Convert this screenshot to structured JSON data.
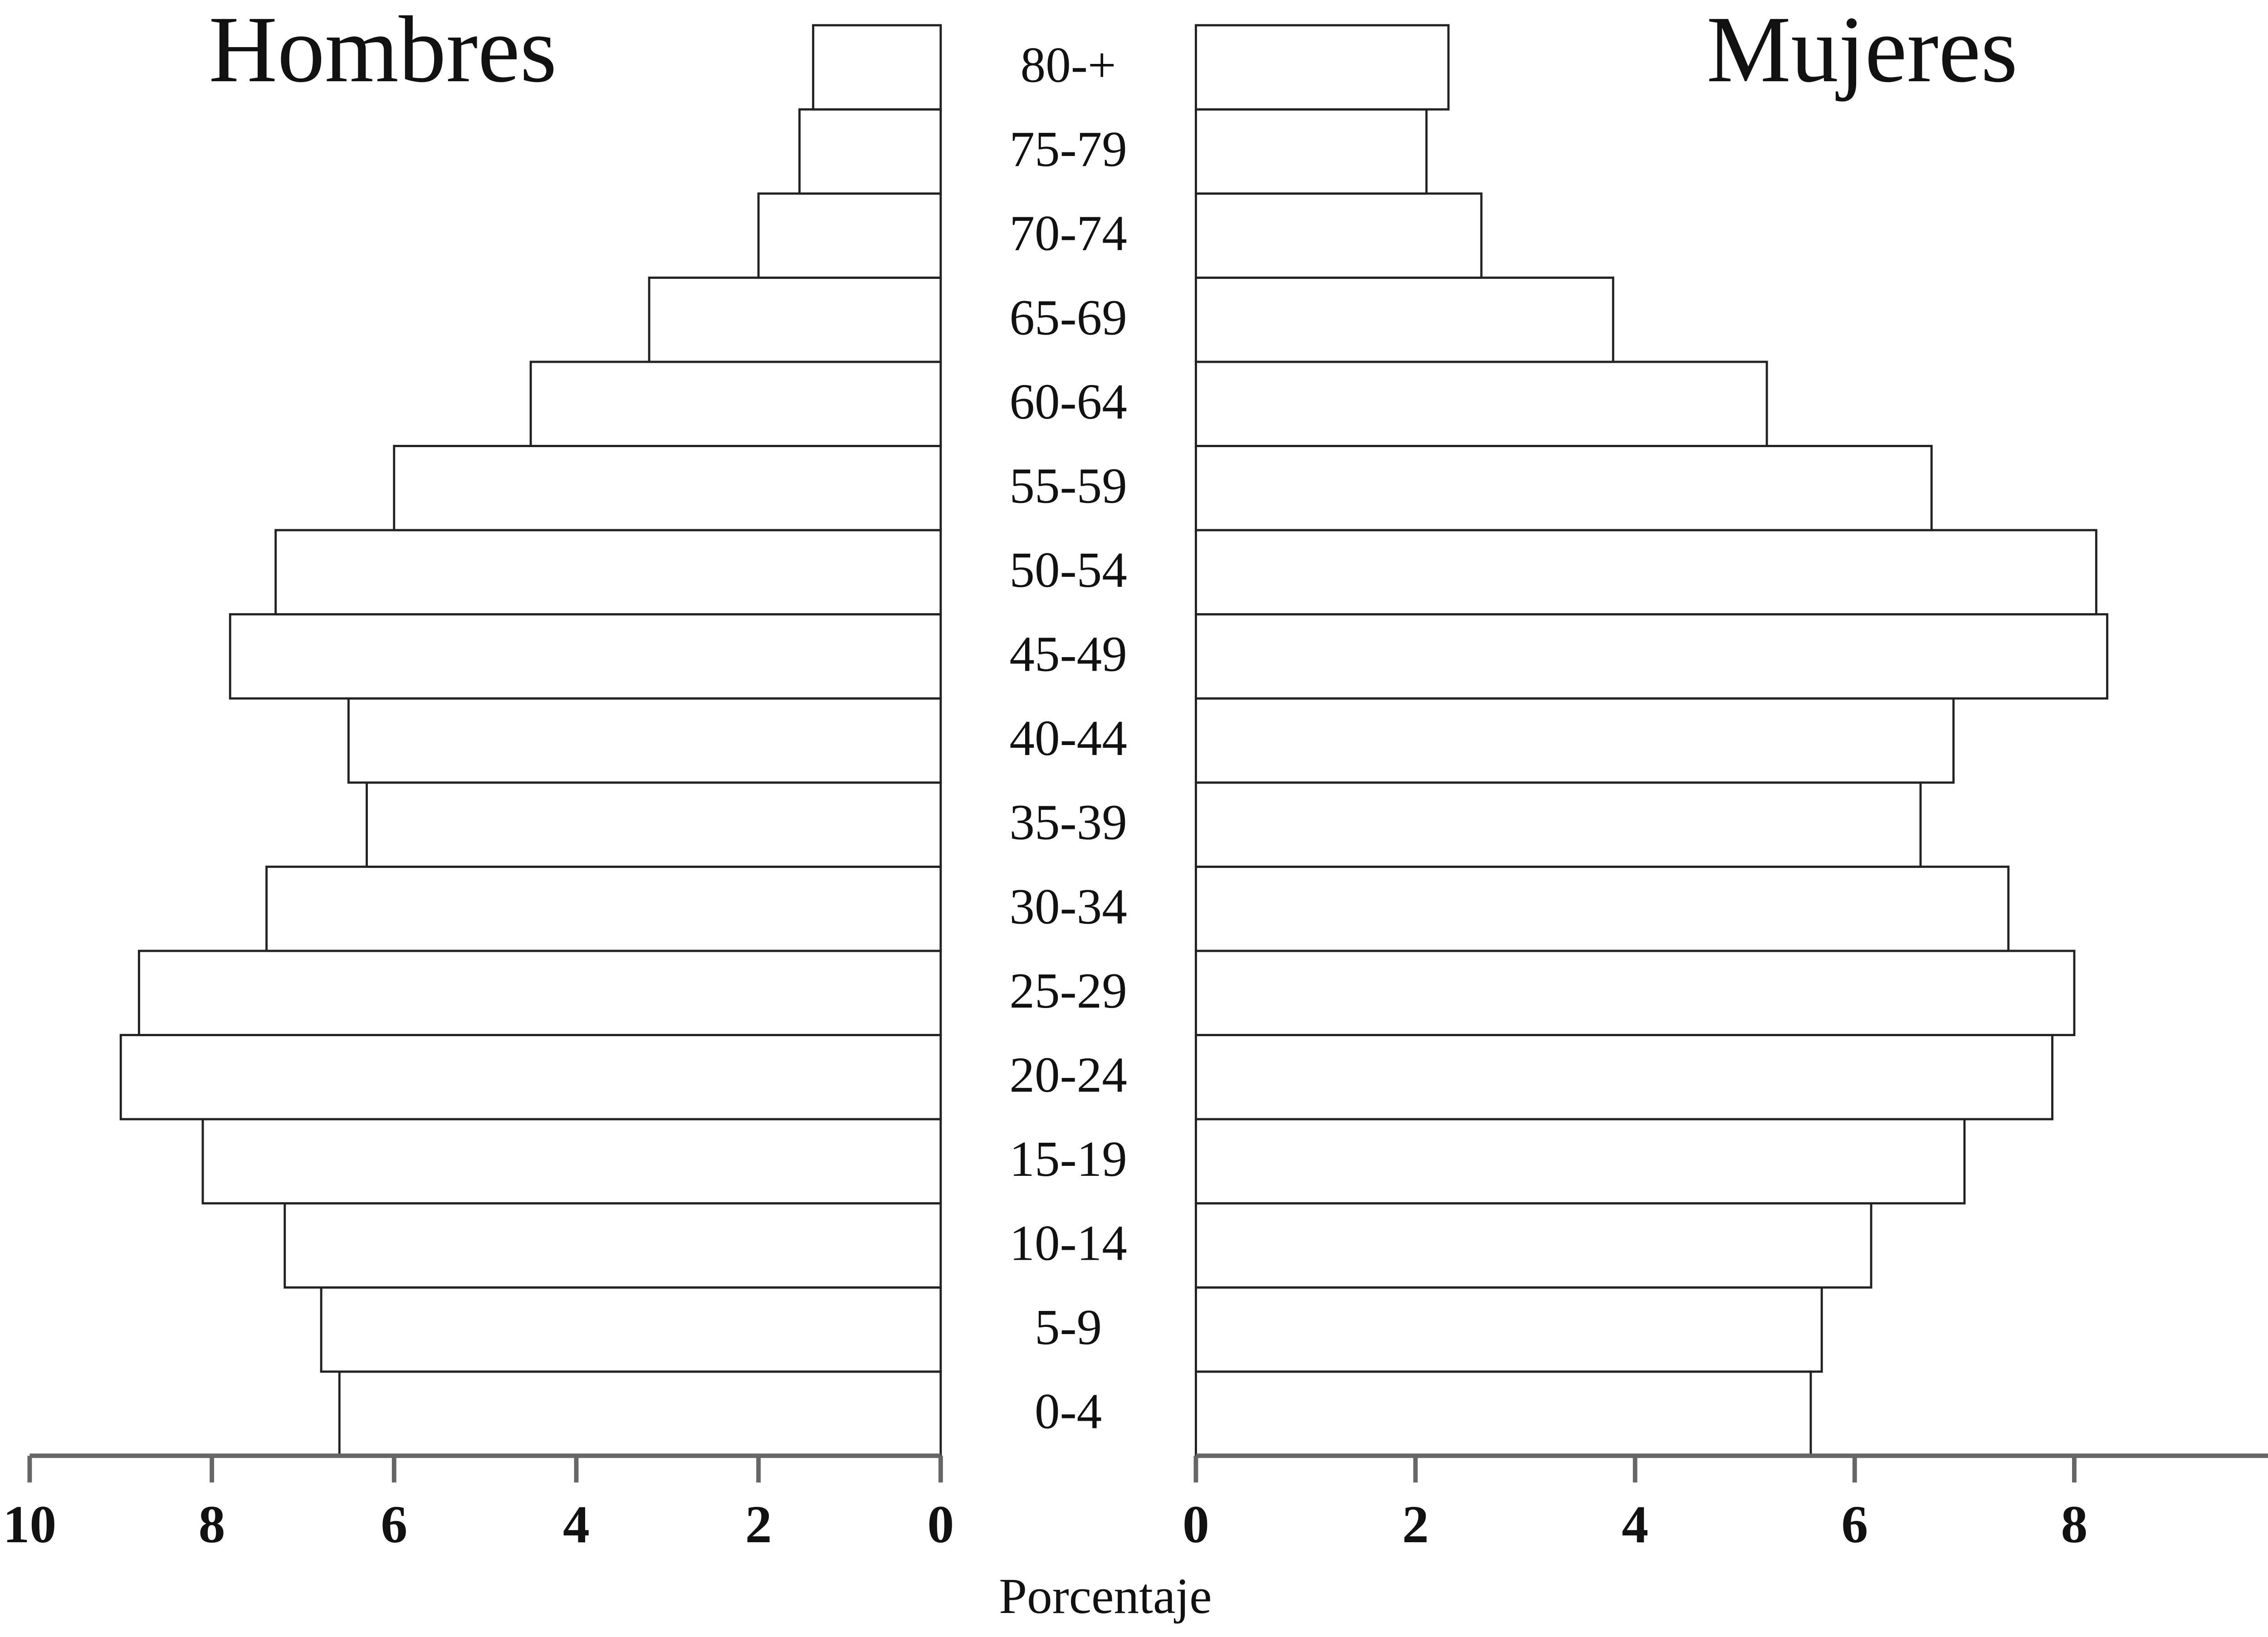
{
  "chart_data": {
    "type": "pyramid",
    "x_label": "Porcentaje",
    "categories": [
      "0-4",
      "5-9",
      "10-14",
      "15-19",
      "20-24",
      "25-29",
      "30-34",
      "35-39",
      "40-44",
      "45-49",
      "50-54",
      "55-59",
      "60-64",
      "65-69",
      "70-74",
      "75-79",
      "80-+"
    ],
    "series": [
      {
        "name": "Hombres",
        "color": "#ffffff",
        "values": [
          6.6,
          6.8,
          7.2,
          8.1,
          9.0,
          8.8,
          7.4,
          6.3,
          6.5,
          7.8,
          7.3,
          6.0,
          4.5,
          3.2,
          2.0,
          1.55,
          1.4
        ]
      },
      {
        "name": "Mujeres",
        "color": "#ffffff",
        "values": [
          5.6,
          5.7,
          6.15,
          7.0,
          7.8,
          8.0,
          7.4,
          6.6,
          6.9,
          8.3,
          8.2,
          6.7,
          5.2,
          3.8,
          2.6,
          2.1,
          2.3
        ]
      }
    ],
    "xlim": [
      0,
      10
    ],
    "xticks": [
      0,
      2,
      4,
      6,
      8,
      10
    ]
  }
}
